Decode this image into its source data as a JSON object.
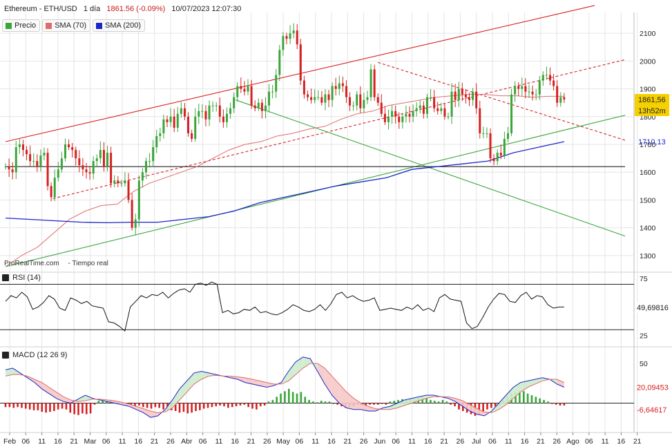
{
  "header": {
    "instrument": "Ethereum - ETH/USD",
    "interval": "1 día",
    "price_change": "1861.56 (-0.09%)",
    "datetime": "10/07/2023 12:07:30"
  },
  "legend": [
    {
      "label": "Precio",
      "color": "#3aa53a"
    },
    {
      "label": "SMA (70)",
      "color": "#e06b6b"
    },
    {
      "label": "SMA (200)",
      "color": "#1b26c8"
    }
  ],
  "source": {
    "site": "ProRealTime.com",
    "mode": "- Tiempo real"
  },
  "panels": {
    "rsi_label": "RSI (14)",
    "macd_label": "MACD (12 26 9)"
  },
  "chart_data": [
    {
      "type": "candlestick",
      "name": "price",
      "y_ticks": [
        1300,
        1400,
        1500,
        1600,
        1700,
        1800,
        1900,
        2000,
        2100
      ],
      "ylim": [
        1240,
        2175
      ],
      "x_tick_labels": [
        "Feb",
        "06",
        "11",
        "16",
        "21",
        "Mar",
        "06",
        "11",
        "16",
        "21",
        "26",
        "Abr",
        "06",
        "11",
        "16",
        "21",
        "26",
        "May",
        "06",
        "11",
        "16",
        "21",
        "26",
        "Jun",
        "06",
        "11",
        "16",
        "21",
        "26",
        "Jul",
        "06",
        "11",
        "16",
        "21",
        "26",
        "Ago",
        "06",
        "11",
        "16",
        "21"
      ],
      "current_price_label": "1861,56",
      "countdown_label": "13h52m",
      "sma200_label": "1710,13",
      "close_series": [
        1620,
        1610,
        1600,
        1690,
        1700,
        1680,
        1665,
        1640,
        1640,
        1620,
        1660,
        1670,
        1550,
        1510,
        1580,
        1610,
        1650,
        1700,
        1690,
        1680,
        1650,
        1625,
        1610,
        1600,
        1595,
        1640,
        1650,
        1680,
        1620,
        1670,
        1560,
        1570,
        1560,
        1560,
        1570,
        1500,
        1400,
        1430,
        1570,
        1600,
        1640,
        1640,
        1690,
        1730,
        1740,
        1790,
        1780,
        1800,
        1760,
        1810,
        1830,
        1800,
        1740,
        1720,
        1800,
        1820,
        1820,
        1790,
        1840,
        1840,
        1840,
        1800,
        1780,
        1810,
        1830,
        1870,
        1910,
        1900,
        1890,
        1910,
        1840,
        1830,
        1850,
        1820,
        1840,
        1890,
        1890,
        1950,
        2040,
        2090,
        2080,
        2100,
        2110,
        2060,
        1930,
        1880,
        1870,
        1860,
        1870,
        1870,
        1850,
        1880,
        1860,
        1910,
        1900,
        1920,
        1910,
        1870,
        1840,
        1840,
        1880,
        1830,
        1860,
        1870,
        1970,
        1870,
        1850,
        1810,
        1780,
        1800,
        1820,
        1800,
        1780,
        1800,
        1810,
        1800,
        1820,
        1830,
        1840,
        1810,
        1870,
        1870,
        1830,
        1820,
        1830,
        1800,
        1800,
        1890,
        1860,
        1900,
        1880,
        1870,
        1860,
        1890,
        1830,
        1740,
        1740,
        1740,
        1650,
        1640,
        1670,
        1660,
        1720,
        1740,
        1880,
        1910,
        1900,
        1910,
        1890,
        1890,
        1880,
        1880,
        1930,
        1950,
        1950,
        1930,
        1910,
        1850,
        1870,
        1862
      ],
      "sma70_series": [
        1260,
        1300,
        1330,
        1380,
        1430,
        1460,
        1480,
        1485,
        1530,
        1560,
        1580,
        1600,
        1620,
        1650,
        1680,
        1700,
        1710,
        1730,
        1740,
        1755,
        1765,
        1790,
        1810,
        1820,
        1840,
        1850,
        1860,
        1870,
        1875,
        1880,
        1880,
        1875,
        1875,
        1870,
        1873,
        1873
      ],
      "sma200_series": [
        1435,
        1430,
        1425,
        1420,
        1418,
        1420,
        1420,
        1430,
        1440,
        1460,
        1490,
        1510,
        1530,
        1550,
        1565,
        1580,
        1610,
        1620,
        1630,
        1640,
        1670,
        1690,
        1710
      ],
      "trendlines": [
        {
          "color": "#d62020",
          "style": "solid",
          "points": [
            [
              0,
              1710
            ],
            [
              174,
              2200
            ]
          ]
        },
        {
          "color": "#d62020",
          "style": "dashed",
          "points": [
            [
              14,
              1505
            ],
            [
              183,
              2005
            ]
          ]
        },
        {
          "color": "#d62020",
          "style": "dashed",
          "points": [
            [
              110,
              1995
            ],
            [
              183,
              1715
            ]
          ]
        },
        {
          "color": "#3aa53a",
          "style": "solid",
          "points": [
            [
              0,
              1260
            ],
            [
              183,
              1805
            ]
          ]
        },
        {
          "color": "#3aa53a",
          "style": "solid",
          "points": [
            [
              68,
              1860
            ],
            [
              183,
              1370
            ]
          ]
        },
        {
          "color": "#222222",
          "style": "solid",
          "points": [
            [
              0,
              1620
            ],
            [
              183,
              1620
            ]
          ]
        }
      ]
    },
    {
      "type": "line",
      "name": "RSI (14)",
      "y_ticks": [
        25,
        75
      ],
      "ylim": [
        15,
        80
      ],
      "last_value_label": "49,69816",
      "levels": [
        70,
        30
      ],
      "series": [
        55,
        60,
        58,
        63,
        59,
        48,
        50,
        54,
        60,
        57,
        49,
        47,
        58,
        56,
        53,
        55,
        51,
        50,
        49,
        37,
        36,
        33,
        29,
        50,
        55,
        60,
        58,
        61,
        60,
        63,
        58,
        62,
        65,
        66,
        63,
        70,
        71,
        69,
        72,
        70,
        45,
        47,
        44,
        45,
        48,
        47,
        50,
        45,
        46,
        44,
        43,
        45,
        48,
        52,
        50,
        47,
        46,
        48,
        52,
        47,
        53,
        61,
        63,
        58,
        60,
        57,
        55,
        56,
        58,
        47,
        48,
        49,
        48,
        47,
        50,
        48,
        52,
        47,
        49,
        46,
        58,
        61,
        57,
        56,
        55,
        36,
        31,
        33,
        41,
        50,
        57,
        62,
        61,
        55,
        54,
        60,
        63,
        57,
        60,
        59,
        52,
        49,
        50,
        50
      ]
    },
    {
      "type": "bar+line",
      "name": "MACD (12 26 9)",
      "y_ticks": [
        50
      ],
      "ylim": [
        -37,
        70
      ],
      "macd_label": "20,09453",
      "histogram_label": "-6,64617",
      "macd_series": [
        42,
        44,
        38,
        32,
        26,
        18,
        12,
        6,
        2,
        0,
        5,
        10,
        6,
        4,
        2,
        0,
        -2,
        -4,
        -8,
        -12,
        -18,
        -16,
        -8,
        4,
        18,
        28,
        38,
        40,
        38,
        36,
        34,
        32,
        30,
        26,
        24,
        22,
        20,
        22,
        26,
        40,
        52,
        58,
        56,
        40,
        24,
        10,
        0,
        -6,
        -8,
        -8,
        -10,
        -10,
        -6,
        -4,
        0,
        4,
        6,
        8,
        10,
        10,
        8,
        6,
        2,
        -4,
        -10,
        -14,
        -16,
        -10,
        0,
        10,
        20,
        26,
        28,
        30,
        32,
        30,
        24,
        20
      ],
      "signal_series": [
        34,
        36,
        36,
        34,
        30,
        26,
        20,
        14,
        8,
        4,
        2,
        3,
        5,
        5,
        4,
        3,
        1,
        -1,
        -4,
        -7,
        -10,
        -12,
        -11,
        -6,
        4,
        14,
        24,
        30,
        34,
        35,
        34,
        34,
        33,
        32,
        30,
        28,
        26,
        24,
        24,
        28,
        36,
        44,
        50,
        50,
        44,
        34,
        24,
        14,
        6,
        0,
        -4,
        -7,
        -8,
        -8,
        -6,
        -3,
        0,
        3,
        6,
        8,
        8,
        8,
        6,
        3,
        -2,
        -7,
        -11,
        -12,
        -8,
        -2,
        6,
        14,
        20,
        24,
        28,
        30,
        30,
        26
      ],
      "histogram_series": [
        -5,
        -5,
        -6,
        -5,
        -6,
        -7,
        -8,
        -9,
        -9,
        -11,
        -12,
        -11,
        -10,
        -8,
        -7,
        -8,
        -12,
        -14,
        -15,
        -13,
        -14,
        -13,
        -2,
        3,
        4,
        3,
        4,
        2,
        2,
        -1,
        -2,
        -3,
        -4,
        -3,
        -5,
        -6,
        -7,
        -5,
        -6,
        -8,
        -8,
        -9,
        -10,
        -12,
        -11,
        -13,
        -12,
        -10,
        -9,
        -7,
        -6,
        -5,
        -4,
        -3,
        -4,
        -6,
        -5,
        -4,
        -3,
        -2,
        -5,
        -7,
        -8,
        -4,
        -3,
        2,
        4,
        8,
        12,
        15,
        18,
        14,
        12,
        14,
        8,
        4,
        2,
        1,
        3,
        2,
        2,
        -1,
        -2,
        -4,
        -6,
        -5,
        -4,
        -2,
        -3,
        -4,
        -2,
        -2,
        -2,
        -1,
        -2,
        2,
        3,
        4,
        5,
        4,
        6,
        5,
        6,
        8,
        6,
        4,
        3,
        2,
        4,
        2,
        -2,
        -4,
        -8,
        -10,
        -12,
        -14,
        -16,
        -15,
        -12,
        -8,
        -6,
        -4,
        -3,
        4,
        8,
        12,
        14,
        16,
        15,
        12,
        10,
        8,
        6,
        4,
        2,
        -1,
        -2,
        -3,
        -3
      ]
    }
  ]
}
